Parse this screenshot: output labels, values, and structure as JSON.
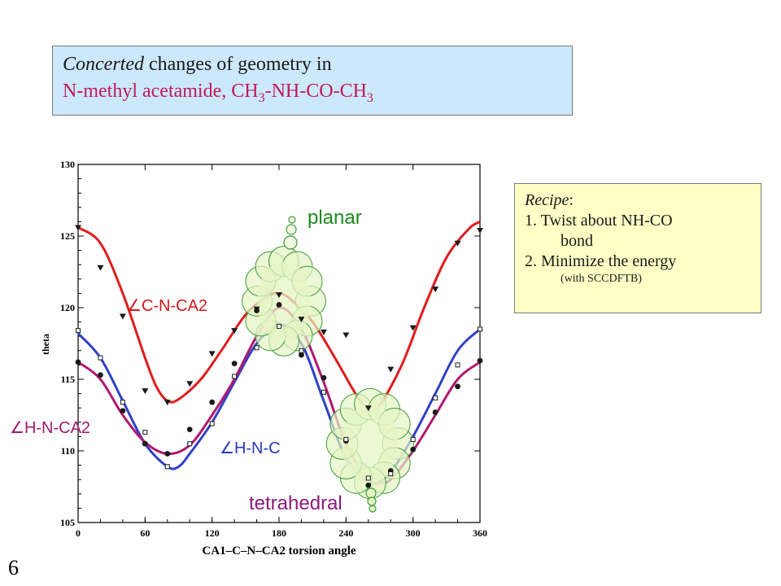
{
  "slide": {
    "title_italic": "Concerted",
    "title_rest": " changes of geometry in",
    "subtitle_pre": "N-methyl acetamide, CH",
    "subtitle_sub1": "3",
    "subtitle_mid": "-NH-CO-CH",
    "subtitle_sub2": "3",
    "page_number": "6"
  },
  "recipe": {
    "heading": "Recipe",
    "heading_colon": ":",
    "step1": "1. Twist about NH-CO",
    "step1_cont": "bond",
    "step2": "2. Minimize the energy",
    "step2_note": "(with SCCDFTB)"
  },
  "annotations": {
    "planar": "planar",
    "tetrahedral": "tetrahedral",
    "angle_symbol": "∠"
  },
  "chart_data": {
    "type": "line",
    "xlabel": "CA1–C–N–CA2 torsion angle",
    "ylabel": "theta",
    "xlim": [
      0,
      360
    ],
    "ylim": [
      105,
      130
    ],
    "xticks": [
      0,
      60,
      120,
      180,
      240,
      300,
      360
    ],
    "yticks": [
      105,
      110,
      115,
      120,
      125,
      130
    ],
    "series": [
      {
        "name": "C-N-CA2",
        "color": "#e01c1c",
        "marker": "triangle-down",
        "curve_x": [
          0,
          20,
          40,
          60,
          70,
          80,
          90,
          110,
          130,
          150,
          170,
          180,
          190,
          210,
          230,
          250,
          260,
          270,
          290,
          310,
          330,
          350,
          360
        ],
        "curve_y": [
          125.6,
          124.5,
          121.0,
          116.5,
          114.5,
          113.5,
          113.6,
          115.0,
          117.2,
          119.5,
          120.8,
          121.0,
          120.6,
          119.0,
          116.5,
          113.8,
          113.0,
          113.2,
          116.0,
          120.0,
          123.5,
          125.5,
          126.0
        ],
        "points_x": [
          0,
          20,
          40,
          60,
          80,
          100,
          120,
          140,
          160,
          180,
          200,
          220,
          240,
          260,
          280,
          300,
          320,
          340,
          360
        ],
        "points_y": [
          125.6,
          122.8,
          119.4,
          114.2,
          113.4,
          114.7,
          116.8,
          118.4,
          119.9,
          120.9,
          119.2,
          118.3,
          118.1,
          113.0,
          115.7,
          118.6,
          121.3,
          124.5,
          125.4
        ]
      },
      {
        "name": "H-N-CA2",
        "color": "#b01870",
        "marker": "circle",
        "curve_x": [
          0,
          20,
          40,
          60,
          80,
          100,
          120,
          140,
          160,
          180,
          200,
          220,
          240,
          260,
          270,
          280,
          300,
          320,
          340,
          360
        ],
        "curve_y": [
          116.2,
          115.0,
          112.5,
          110.6,
          109.8,
          110.4,
          112.5,
          115.0,
          118.0,
          120.0,
          118.5,
          114.8,
          110.5,
          108.0,
          107.8,
          108.0,
          110.0,
          112.5,
          115.0,
          116.2
        ],
        "points_x": [
          0,
          20,
          40,
          60,
          80,
          100,
          120,
          140,
          160,
          180,
          200,
          220,
          240,
          260,
          280,
          300,
          320,
          340,
          360
        ],
        "points_y": [
          116.2,
          115.3,
          112.8,
          110.5,
          109.8,
          111.5,
          113.4,
          116.1,
          119.8,
          120.2,
          116.7,
          115.1,
          110.7,
          107.6,
          108.6,
          110.1,
          112.7,
          114.5,
          116.3
        ]
      },
      {
        "name": "H-N-C",
        "color": "#3040c8",
        "marker": "open-square",
        "curve_x": [
          0,
          20,
          40,
          60,
          80,
          90,
          100,
          120,
          140,
          160,
          180,
          200,
          220,
          240,
          260,
          270,
          280,
          300,
          320,
          340,
          360
        ],
        "curve_y": [
          118.2,
          116.5,
          113.5,
          110.5,
          108.9,
          108.9,
          109.8,
          112.0,
          114.8,
          117.5,
          118.8,
          117.5,
          113.5,
          109.5,
          107.8,
          107.9,
          108.5,
          111.0,
          114.0,
          117.0,
          118.5
        ],
        "points_x": [
          0,
          20,
          40,
          60,
          80,
          100,
          120,
          140,
          160,
          180,
          200,
          220,
          240,
          260,
          280,
          300,
          320,
          340,
          360
        ],
        "points_y": [
          118.4,
          116.5,
          113.4,
          111.3,
          108.9,
          110.5,
          111.9,
          115.2,
          117.2,
          118.7,
          117.0,
          114.1,
          110.8,
          108.1,
          108.4,
          110.8,
          113.7,
          116.0,
          118.5
        ]
      }
    ]
  }
}
